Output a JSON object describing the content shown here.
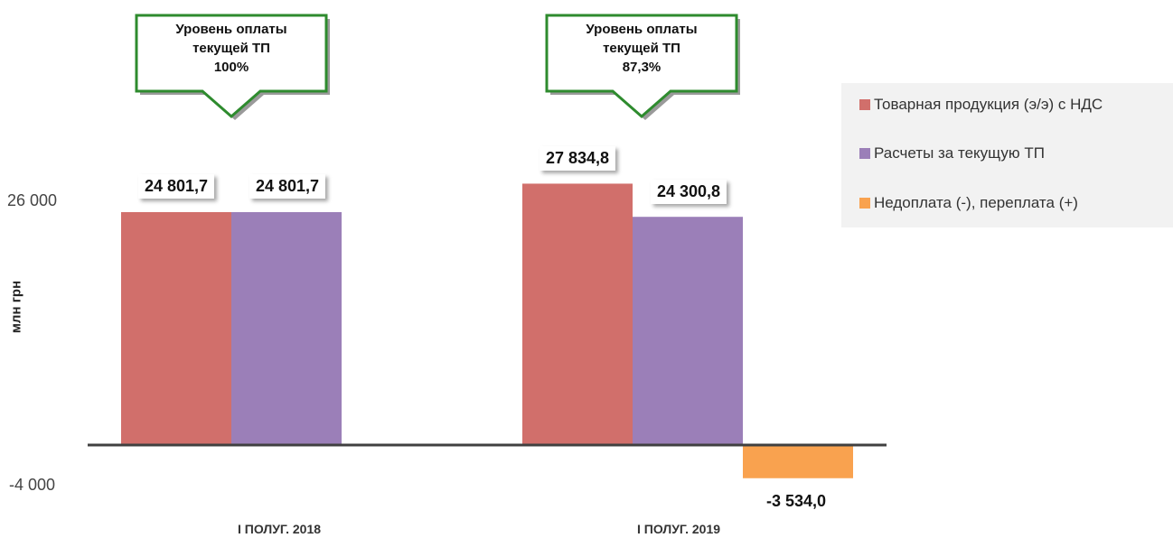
{
  "chart_data": {
    "type": "bar",
    "categories": [
      "I ПОЛУГ. 2018",
      "I ПОЛУГ. 2019"
    ],
    "series": [
      {
        "name": "Товарная продукция (э/э) с НДС",
        "color": "#d16f6b",
        "values": [
          24801.7,
          27834.8
        ],
        "labels": [
          "24 801,7",
          "27 834,8"
        ]
      },
      {
        "name": "Расчеты за текущую ТП",
        "color": "#9b7fb8",
        "values": [
          24801.7,
          24300.8
        ],
        "labels": [
          "24 801,7",
          "24 300,8"
        ]
      },
      {
        "name": "Недоплата (-), переплата (+)",
        "color": "#f9a24f",
        "values": [
          null,
          -3534.0
        ],
        "labels": [
          "",
          "-3 534,0"
        ]
      }
    ],
    "ylabel": "млн грн",
    "yticks": [
      "26 000",
      "-4 000"
    ],
    "ytick_values": [
      26000,
      -4000
    ],
    "legend_position": "right",
    "grid": false,
    "callouts": [
      {
        "lines": [
          "Уровень оплаты",
          "текущей ТП",
          "100%"
        ]
      },
      {
        "lines": [
          "Уровень оплаты",
          "текущей ТП",
          "87,3%"
        ]
      }
    ]
  }
}
